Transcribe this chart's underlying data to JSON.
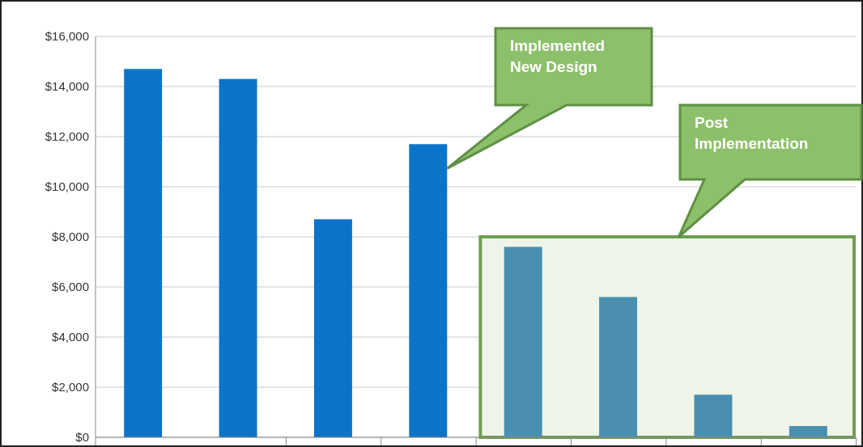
{
  "chart_data": {
    "type": "bar",
    "categories": [
      null,
      null,
      null,
      null,
      null,
      null,
      null,
      null
    ],
    "values": [
      14700,
      14300,
      8700,
      11700,
      7600,
      5600,
      1700,
      450
    ],
    "colors": [
      "#0b74c9",
      "#0b74c9",
      "#0b74c9",
      "#0b74c9",
      "#4b8fb0",
      "#4b8fb0",
      "#4b8fb0",
      "#4b8fb0"
    ],
    "ylim": [
      0,
      16000
    ],
    "yticks": [
      {
        "value": 0,
        "label": "$0"
      },
      {
        "value": 2000,
        "label": "$2,000"
      },
      {
        "value": 4000,
        "label": "$4,000"
      },
      {
        "value": 6000,
        "label": "$6,000"
      },
      {
        "value": 8000,
        "label": "$8,000"
      },
      {
        "value": 10000,
        "label": "$10,000"
      },
      {
        "value": 12000,
        "label": "$12,000"
      },
      {
        "value": 14000,
        "label": "$14,000"
      },
      {
        "value": 16000,
        "label": "$16,000"
      }
    ],
    "grid": "y",
    "annotations": [
      "Implemented New Design",
      "Post Implementation"
    ]
  }
}
